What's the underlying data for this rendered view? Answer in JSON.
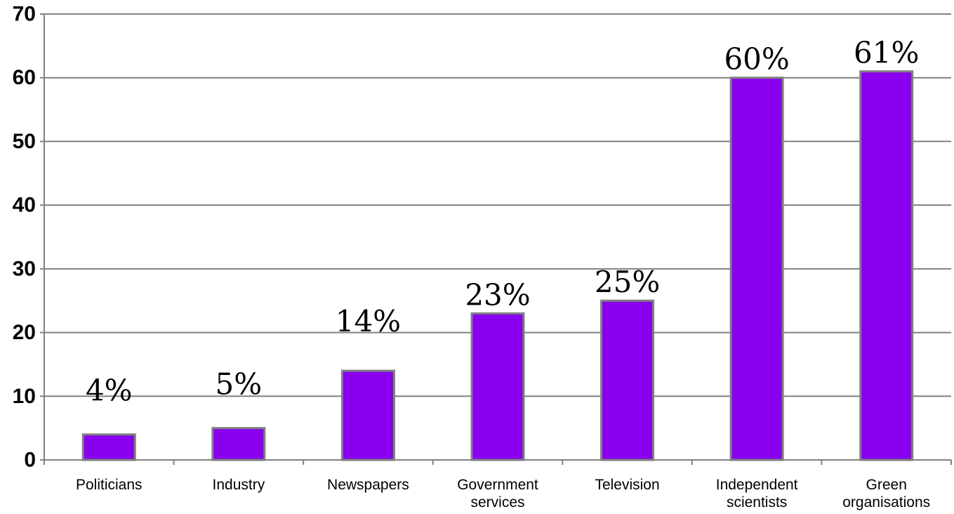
{
  "chart_data": {
    "type": "bar",
    "categories": [
      [
        "Politicians"
      ],
      [
        "Industry"
      ],
      [
        "Newspapers"
      ],
      [
        "Government",
        "services"
      ],
      [
        "Television"
      ],
      [
        "Independent",
        "scientists"
      ],
      [
        "Green",
        "organisations"
      ]
    ],
    "values": [
      4,
      5,
      14,
      23,
      25,
      60,
      61
    ],
    "data_labels": [
      "4%",
      "5%",
      "14%",
      "23%",
      "25%",
      "60%",
      "61%"
    ],
    "title": "",
    "xlabel": "",
    "ylabel": "",
    "ylim": [
      0,
      70
    ],
    "yticks": [
      "0",
      "10",
      "20",
      "30",
      "40",
      "50",
      "60",
      "70"
    ],
    "grid": true,
    "legend": "none",
    "colors": {
      "bar_fill": "#8800ee",
      "bar_stroke": "#808080",
      "grid": "#808080",
      "axis": "#808080"
    }
  }
}
